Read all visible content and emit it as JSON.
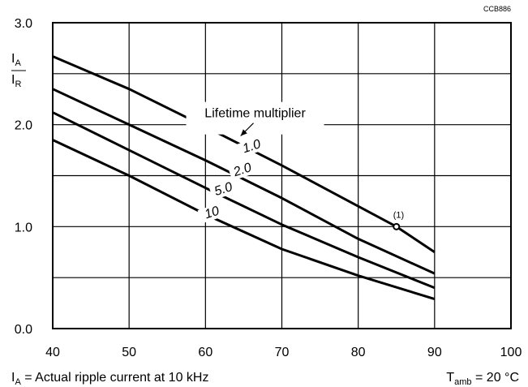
{
  "chart_data": {
    "type": "line",
    "figure_code": "CCB886",
    "x_ticks": [
      "40",
      "50",
      "60",
      "70",
      "80",
      "90",
      "100"
    ],
    "y_ticks": [
      "0.0",
      "1.0",
      "2.0",
      "3.0"
    ],
    "xlim": [
      40,
      100
    ],
    "ylim": [
      0,
      3
    ],
    "x_grid_step": 10,
    "y_grid_step": 0.5,
    "grid": true,
    "ylabel": {
      "num_main": "I",
      "num_sub": "A",
      "den_main": "I",
      "den_sub": "R"
    },
    "xlabel": {
      "main": "T",
      "sub": "amb",
      "rest": " = 20 °C"
    },
    "footnote": {
      "main": "I",
      "sub": "A",
      "rest": " = Actual ripple current at 10 kHz"
    },
    "annotation": "Lifetime multiplier",
    "marker_label": "(1)",
    "marker": {
      "x": 85,
      "y": 1.0
    },
    "series": [
      {
        "name": "1.0",
        "x": [
          40,
          50,
          60,
          70,
          80,
          85,
          90
        ],
        "y": [
          2.67,
          2.35,
          1.98,
          1.6,
          1.2,
          1.0,
          0.75
        ],
        "label_at": [
          66.2,
          1.75
        ],
        "label_angle": -18
      },
      {
        "name": "2.0",
        "x": [
          40,
          50,
          60,
          70,
          80,
          90
        ],
        "y": [
          2.35,
          2.0,
          1.65,
          1.28,
          0.88,
          0.54
        ],
        "label_at": [
          65.0,
          1.52
        ],
        "label_angle": -18
      },
      {
        "name": "5.0",
        "x": [
          40,
          50,
          60,
          70,
          80,
          90
        ],
        "y": [
          2.12,
          1.75,
          1.38,
          1.02,
          0.7,
          0.4
        ],
        "label_at": [
          62.5,
          1.33
        ],
        "label_angle": -18
      },
      {
        "name": "10",
        "x": [
          40,
          50,
          60,
          70,
          80,
          90
        ],
        "y": [
          1.85,
          1.5,
          1.12,
          0.78,
          0.52,
          0.29
        ],
        "label_at": [
          61.0,
          1.1
        ],
        "label_angle": -18
      }
    ]
  }
}
